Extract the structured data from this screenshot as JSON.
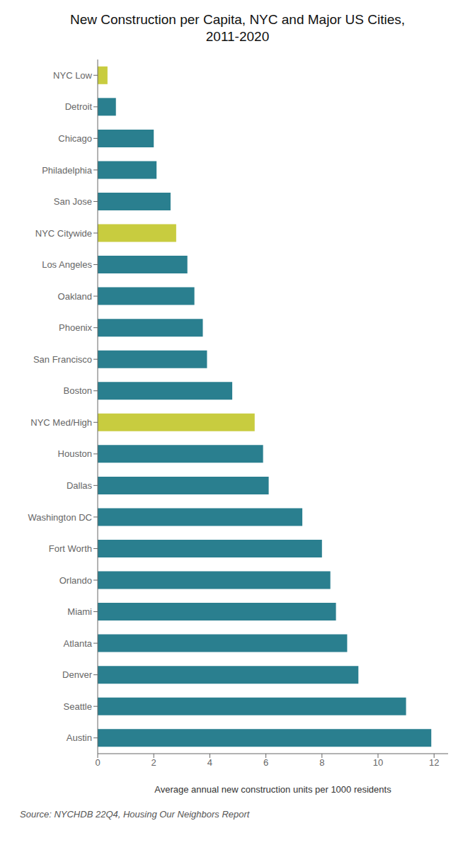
{
  "chart_data": {
    "type": "bar",
    "orientation": "horizontal",
    "title": "New Construction per Capita, NYC and Major US Cities,\n2011-2020",
    "xlabel": "Average annual new construction units per 1000 residents",
    "source": "Source: NYCHDB 22Q4, Housing Our Neighbors Report",
    "categories": [
      "Austin",
      "Seattle",
      "Denver",
      "Atlanta",
      "Miami",
      "Orlando",
      "Fort Worth",
      "Washington DC",
      "Dallas",
      "Houston",
      "NYC Med/High",
      "Boston",
      "San Francisco",
      "Phoenix",
      "Oakland",
      "Los Angeles",
      "NYC Citywide",
      "San Jose",
      "Philadelphia",
      "Chicago",
      "Detroit",
      "NYC Low"
    ],
    "values": [
      11.9,
      11.0,
      9.3,
      8.9,
      8.5,
      8.3,
      8.0,
      7.3,
      6.1,
      5.9,
      5.6,
      4.8,
      3.9,
      3.75,
      3.45,
      3.2,
      2.8,
      2.6,
      2.1,
      2.0,
      0.65,
      0.35
    ],
    "colors": [
      "#2a7f8f",
      "#2a7f8f",
      "#2a7f8f",
      "#2a7f8f",
      "#2a7f8f",
      "#2a7f8f",
      "#2a7f8f",
      "#2a7f8f",
      "#2a7f8f",
      "#2a7f8f",
      "#c8cc3f",
      "#2a7f8f",
      "#2a7f8f",
      "#2a7f8f",
      "#2a7f8f",
      "#2a7f8f",
      "#c8cc3f",
      "#2a7f8f",
      "#2a7f8f",
      "#2a7f8f",
      "#2a7f8f",
      "#c8cc3f"
    ],
    "xlim": [
      0,
      12.5
    ],
    "xticks": [
      0,
      2,
      4,
      6,
      8,
      10,
      12
    ],
    "grid": false
  }
}
